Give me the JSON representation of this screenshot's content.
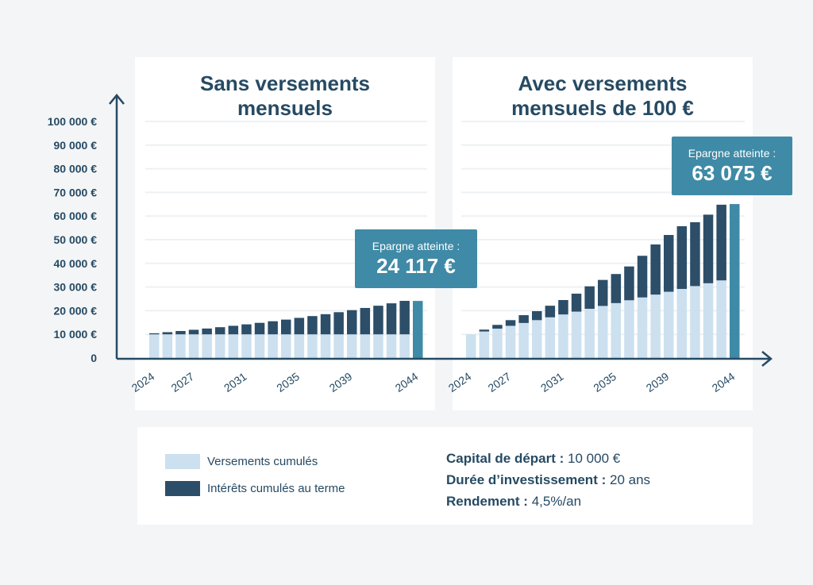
{
  "colors": {
    "versements": "#cce0ef",
    "interets": "#2d4e68",
    "highlight": "#3f8aa6",
    "axis": "#264a63",
    "grid": "#eef1f4"
  },
  "chart_data": [
    {
      "type": "bar",
      "stacked": true,
      "title": "Sans versements\nmensuels",
      "categories": [
        "2024",
        "2025",
        "2026",
        "2027",
        "2028",
        "2029",
        "2030",
        "2031",
        "2032",
        "2033",
        "2034",
        "2035",
        "2036",
        "2037",
        "2038",
        "2039",
        "2040",
        "2041",
        "2042",
        "2043",
        "2044"
      ],
      "xtick_labels": [
        "2024",
        "2027",
        "2031",
        "2035",
        "2039",
        "2044"
      ],
      "series": [
        {
          "name": "Versements cumulés",
          "values": [
            10000,
            10000,
            10000,
            10000,
            10000,
            10000,
            10000,
            10000,
            10000,
            10000,
            10000,
            10000,
            10000,
            10000,
            10000,
            10000,
            10000,
            10000,
            10000,
            10000,
            10000
          ]
        },
        {
          "name": "Intérêts cumulés au terme",
          "values": [
            450,
            920,
            1410,
            1930,
            2460,
            3020,
            3610,
            4220,
            4860,
            5530,
            6230,
            6960,
            7720,
            8520,
            9360,
            10230,
            11150,
            12100,
            13110,
            14150,
            14117
          ]
        }
      ],
      "highlight_index": 20,
      "ylim": [
        0,
        100000
      ],
      "yticks": [
        "100 000 €",
        "90 000 €",
        "80 000 €",
        "70 000 €",
        "60 000 €",
        "50 000 €",
        "40 000 €",
        "30 000 €",
        "20 000 €",
        "10 000 €",
        "0"
      ],
      "callout": {
        "label": "Epargne atteinte :",
        "value": "24 117 €"
      },
      "grid": true
    },
    {
      "type": "bar",
      "stacked": true,
      "title": "Avec versements\nmensuels de 100 €",
      "categories": [
        "2024",
        "2025",
        "2026",
        "2027",
        "2028",
        "2029",
        "2030",
        "2031",
        "2032",
        "2033",
        "2034",
        "2035",
        "2036",
        "2037",
        "2038",
        "2039",
        "2040",
        "2041",
        "2042",
        "2043",
        "2044"
      ],
      "xtick_labels": [
        "2024",
        "2027",
        "2031",
        "2035",
        "2039",
        "2044"
      ],
      "series": [
        {
          "name": "Versements cumulés",
          "values": [
            10000,
            11200,
            12400,
            13600,
            14800,
            16000,
            17200,
            18400,
            19600,
            20800,
            22000,
            23200,
            24400,
            25600,
            26800,
            28000,
            29200,
            30400,
            31600,
            32800,
            34000
          ]
        },
        {
          "name": "Intérêts cumulés au terme",
          "values": [
            0,
            800,
            1600,
            2400,
            3300,
            3800,
            4900,
            6100,
            7600,
            9500,
            11000,
            12300,
            14300,
            17600,
            21200,
            24000,
            26500,
            27000,
            29000,
            32000,
            31075
          ]
        }
      ],
      "highlight_index": 20,
      "ylim": [
        0,
        100000
      ],
      "callout": {
        "label": "Epargne atteinte :",
        "value": "63 075 €"
      },
      "grid": true
    }
  ],
  "legend": {
    "versements": "Versements cumulés",
    "interets": "Intérêts cumulés au terme"
  },
  "info": {
    "capital_label": "Capital de départ :",
    "capital_value": "10 000 €",
    "duree_label": "Durée d’investissement :",
    "duree_value": "20 ans",
    "rendement_label": "Rendement :",
    "rendement_value": "4,5%/an"
  }
}
